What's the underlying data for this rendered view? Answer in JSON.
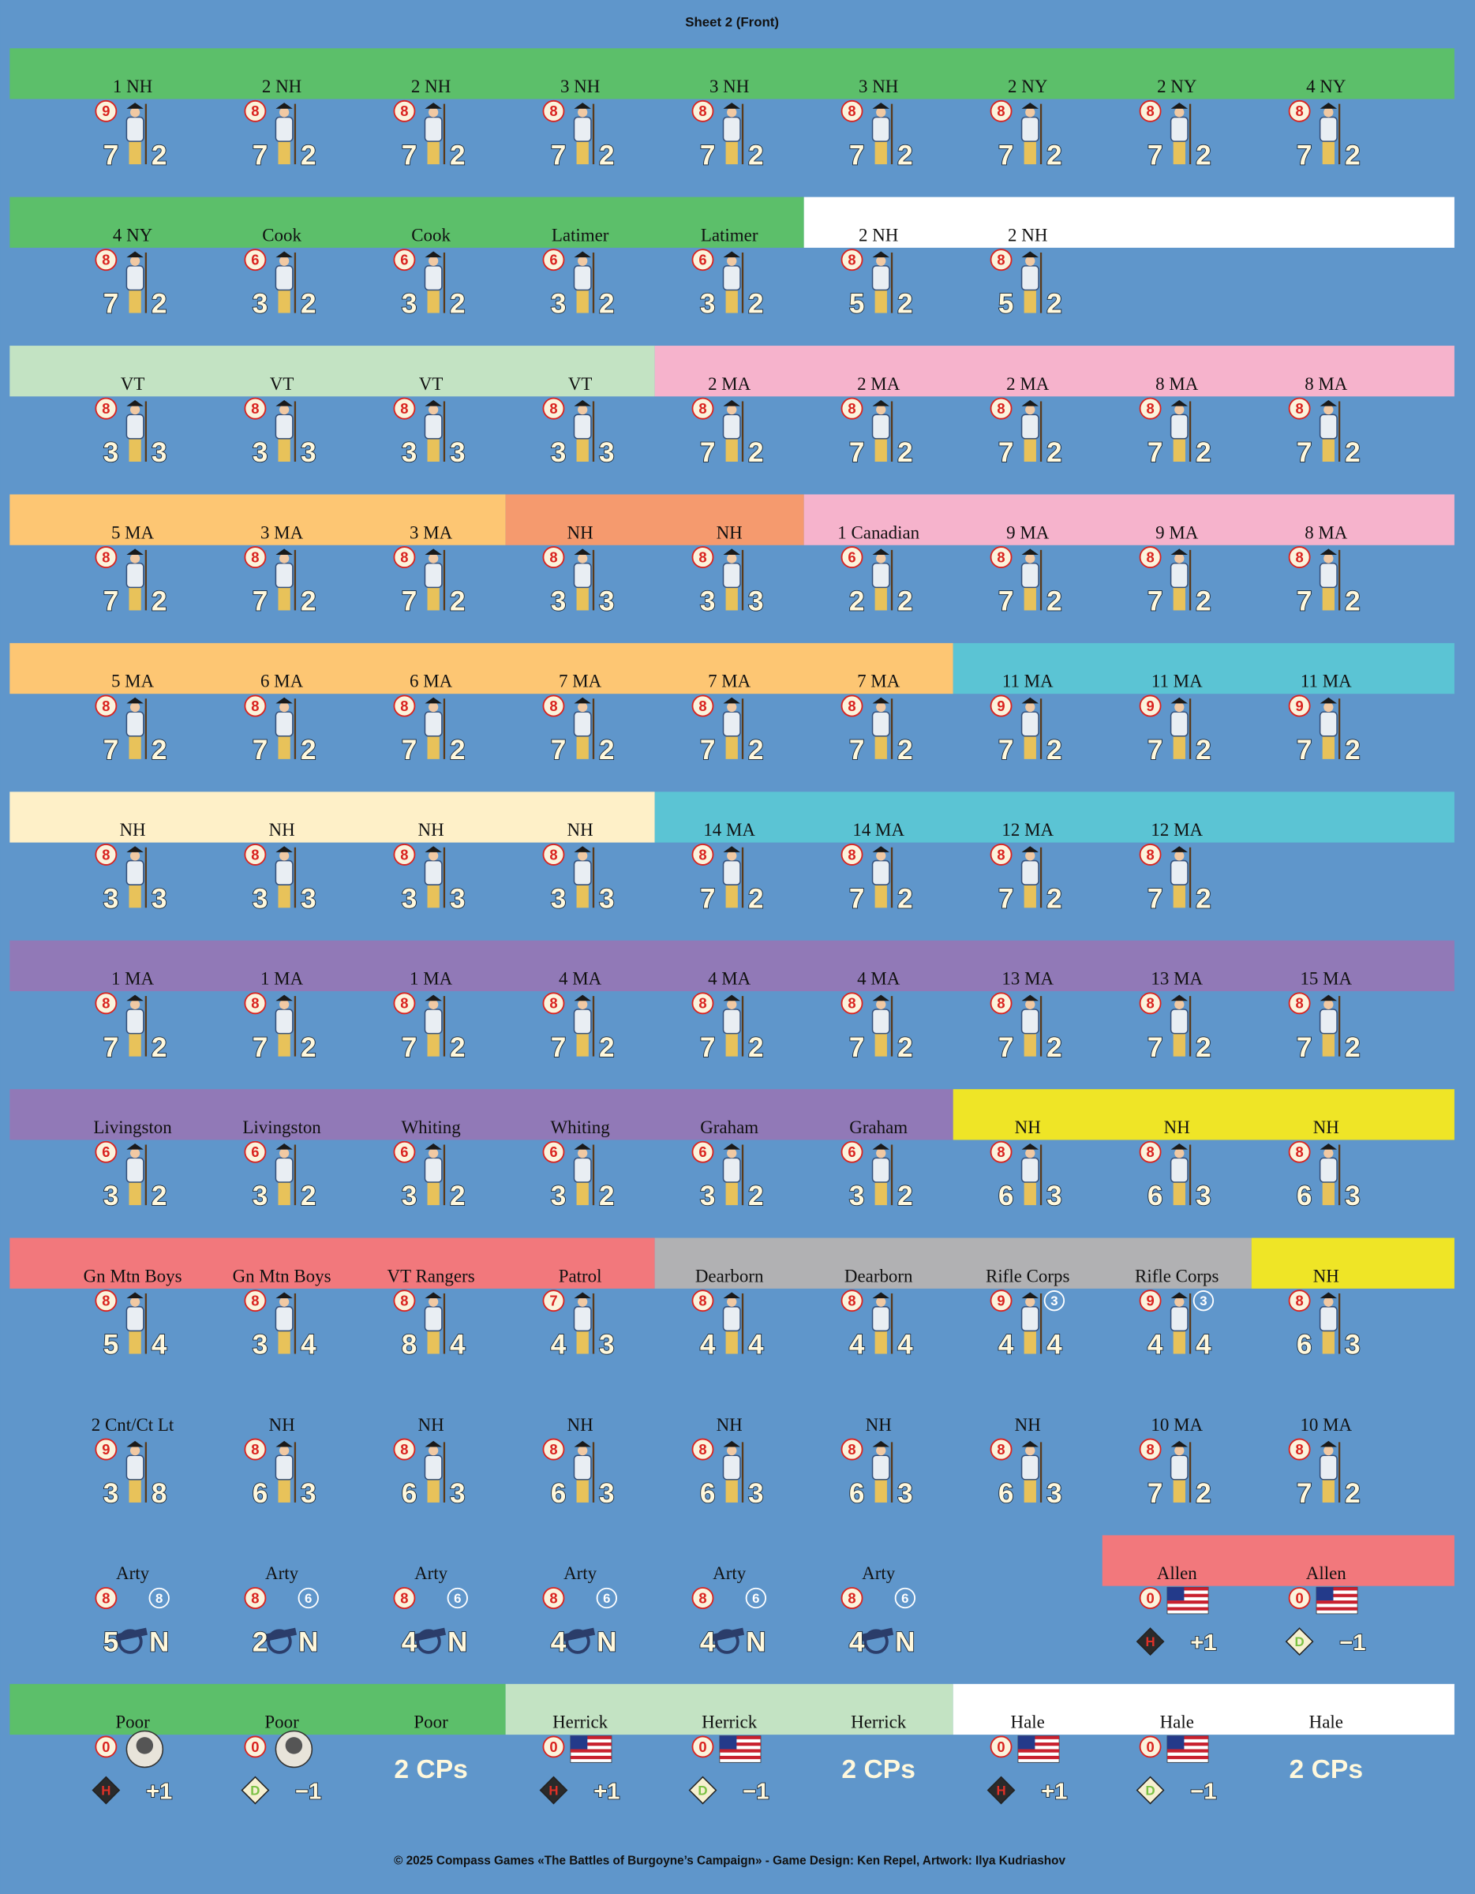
{
  "title": "Sheet 2 (Front)",
  "rows": [
    [
      {
        "label": "1 NH",
        "morale": 9,
        "stats": [
          7,
          2
        ]
      },
      {
        "label": "2 NH",
        "morale": 8,
        "stats": [
          7,
          2
        ]
      },
      {
        "label": "2 NH",
        "morale": 8,
        "stats": [
          7,
          2
        ]
      },
      {
        "label": "3 NH",
        "morale": 8,
        "stats": [
          7,
          2
        ]
      },
      {
        "label": "3 NH",
        "morale": 8,
        "stats": [
          7,
          2
        ]
      },
      {
        "label": "3 NH",
        "morale": 8,
        "stats": [
          7,
          2
        ]
      },
      {
        "label": "2 NY",
        "morale": 8,
        "stats": [
          7,
          2
        ]
      },
      {
        "label": "2 NY",
        "morale": 8,
        "stats": [
          7,
          2
        ]
      },
      {
        "label": "4 NY",
        "morale": 8,
        "stats": [
          7,
          2
        ]
      }
    ],
    [
      {
        "label": "4 NY",
        "morale": 8,
        "stats": [
          7,
          2
        ]
      },
      {
        "label": "Cook",
        "morale": 6,
        "stats": [
          3,
          2
        ]
      },
      {
        "label": "Cook",
        "morale": 6,
        "stats": [
          3,
          2
        ]
      },
      {
        "label": "Latimer",
        "morale": 6,
        "stats": [
          3,
          2
        ]
      },
      {
        "label": "Latimer",
        "morale": 6,
        "stats": [
          3,
          2
        ]
      },
      {
        "label": "2 NH",
        "morale": 8,
        "stats": [
          5,
          2
        ]
      },
      {
        "label": "2 NH",
        "morale": 8,
        "stats": [
          5,
          2
        ]
      }
    ],
    [
      {
        "label": "VT",
        "morale": 8,
        "stats": [
          3,
          3
        ]
      },
      {
        "label": "VT",
        "morale": 8,
        "stats": [
          3,
          3
        ]
      },
      {
        "label": "VT",
        "morale": 8,
        "stats": [
          3,
          3
        ]
      },
      {
        "label": "VT",
        "morale": 8,
        "stats": [
          3,
          3
        ]
      },
      {
        "label": "2 MA",
        "morale": 8,
        "stats": [
          7,
          2
        ]
      },
      {
        "label": "2 MA",
        "morale": 8,
        "stats": [
          7,
          2
        ]
      },
      {
        "label": "2 MA",
        "morale": 8,
        "stats": [
          7,
          2
        ]
      },
      {
        "label": "8 MA",
        "morale": 8,
        "stats": [
          7,
          2
        ]
      },
      {
        "label": "8 MA",
        "morale": 8,
        "stats": [
          7,
          2
        ]
      }
    ],
    [
      {
        "label": "5 MA",
        "morale": 8,
        "stats": [
          7,
          2
        ]
      },
      {
        "label": "3 MA",
        "morale": 8,
        "stats": [
          7,
          2
        ]
      },
      {
        "label": "3 MA",
        "morale": 8,
        "stats": [
          7,
          2
        ]
      },
      {
        "label": "NH",
        "morale": 8,
        "stats": [
          3,
          3
        ]
      },
      {
        "label": "NH",
        "morale": 8,
        "stats": [
          3,
          3
        ]
      },
      {
        "label": "1 Canadian",
        "morale": 6,
        "stats": [
          2,
          2
        ]
      },
      {
        "label": "9 MA",
        "morale": 8,
        "stats": [
          7,
          2
        ]
      },
      {
        "label": "9 MA",
        "morale": 8,
        "stats": [
          7,
          2
        ]
      },
      {
        "label": "8 MA",
        "morale": 8,
        "stats": [
          7,
          2
        ]
      }
    ],
    [
      {
        "label": "5 MA",
        "morale": 8,
        "stats": [
          7,
          2
        ]
      },
      {
        "label": "6 MA",
        "morale": 8,
        "stats": [
          7,
          2
        ]
      },
      {
        "label": "6 MA",
        "morale": 8,
        "stats": [
          7,
          2
        ]
      },
      {
        "label": "7 MA",
        "morale": 8,
        "stats": [
          7,
          2
        ]
      },
      {
        "label": "7 MA",
        "morale": 8,
        "stats": [
          7,
          2
        ]
      },
      {
        "label": "7 MA",
        "morale": 8,
        "stats": [
          7,
          2
        ]
      },
      {
        "label": "11 MA",
        "morale": 9,
        "stats": [
          7,
          2
        ]
      },
      {
        "label": "11 MA",
        "morale": 9,
        "stats": [
          7,
          2
        ]
      },
      {
        "label": "11 MA",
        "morale": 9,
        "stats": [
          7,
          2
        ]
      }
    ],
    [
      {
        "label": "NH",
        "morale": 8,
        "stats": [
          3,
          3
        ]
      },
      {
        "label": "NH",
        "morale": 8,
        "stats": [
          3,
          3
        ]
      },
      {
        "label": "NH",
        "morale": 8,
        "stats": [
          3,
          3
        ]
      },
      {
        "label": "NH",
        "morale": 8,
        "stats": [
          3,
          3
        ]
      },
      {
        "label": "14 MA",
        "morale": 8,
        "stats": [
          7,
          2
        ]
      },
      {
        "label": "14 MA",
        "morale": 8,
        "stats": [
          7,
          2
        ]
      },
      {
        "label": "12 MA",
        "morale": 8,
        "stats": [
          7,
          2
        ]
      },
      {
        "label": "12 MA",
        "morale": 8,
        "stats": [
          7,
          2
        ]
      }
    ],
    [
      {
        "label": "1 MA",
        "morale": 8,
        "stats": [
          7,
          2
        ]
      },
      {
        "label": "1 MA",
        "morale": 8,
        "stats": [
          7,
          2
        ]
      },
      {
        "label": "1 MA",
        "morale": 8,
        "stats": [
          7,
          2
        ]
      },
      {
        "label": "4 MA",
        "morale": 8,
        "stats": [
          7,
          2
        ]
      },
      {
        "label": "4 MA",
        "morale": 8,
        "stats": [
          7,
          2
        ]
      },
      {
        "label": "4 MA",
        "morale": 8,
        "stats": [
          7,
          2
        ]
      },
      {
        "label": "13 MA",
        "morale": 8,
        "stats": [
          7,
          2
        ]
      },
      {
        "label": "13 MA",
        "morale": 8,
        "stats": [
          7,
          2
        ]
      },
      {
        "label": "15 MA",
        "morale": 8,
        "stats": [
          7,
          2
        ]
      }
    ],
    [
      {
        "label": "Livingston",
        "morale": 6,
        "stats": [
          3,
          2
        ]
      },
      {
        "label": "Livingston",
        "morale": 6,
        "stats": [
          3,
          2
        ]
      },
      {
        "label": "Whiting",
        "morale": 6,
        "stats": [
          3,
          2
        ]
      },
      {
        "label": "Whiting",
        "morale": 6,
        "stats": [
          3,
          2
        ]
      },
      {
        "label": "Graham",
        "morale": 6,
        "stats": [
          3,
          2
        ]
      },
      {
        "label": "Graham",
        "morale": 6,
        "stats": [
          3,
          2
        ]
      },
      {
        "label": "NH",
        "morale": 8,
        "stats": [
          6,
          3
        ]
      },
      {
        "label": "NH",
        "morale": 8,
        "stats": [
          6,
          3
        ]
      },
      {
        "label": "NH",
        "morale": 8,
        "stats": [
          6,
          3
        ]
      }
    ],
    [
      {
        "label": "Gn Mtn Boys",
        "morale": 8,
        "stats": [
          5,
          4
        ]
      },
      {
        "label": "Gn Mtn Boys",
        "morale": 8,
        "stats": [
          3,
          4
        ]
      },
      {
        "label": "VT Rangers",
        "morale": 8,
        "stats": [
          8,
          4
        ]
      },
      {
        "label": "Patrol",
        "morale": 7,
        "stats": [
          4,
          3
        ]
      },
      {
        "label": "Dearborn",
        "morale": 8,
        "stats": [
          4,
          4
        ]
      },
      {
        "label": "Dearborn",
        "morale": 8,
        "stats": [
          4,
          4
        ]
      },
      {
        "label": "Rifle Corps",
        "morale": 9,
        "badge": 3,
        "stats": [
          4,
          4
        ]
      },
      {
        "label": "Rifle Corps",
        "morale": 9,
        "badge": 3,
        "stats": [
          4,
          4
        ]
      },
      {
        "label": "NH",
        "morale": 8,
        "stats": [
          6,
          3
        ]
      }
    ],
    [
      {
        "label": "2 Cnt/Ct Lt",
        "morale": 9,
        "stats": [
          3,
          8
        ]
      },
      {
        "label": "NH",
        "morale": 8,
        "stats": [
          6,
          3
        ]
      },
      {
        "label": "NH",
        "morale": 8,
        "stats": [
          6,
          3
        ]
      },
      {
        "label": "NH",
        "morale": 8,
        "stats": [
          6,
          3
        ]
      },
      {
        "label": "NH",
        "morale": 8,
        "stats": [
          6,
          3
        ]
      },
      {
        "label": "NH",
        "morale": 8,
        "stats": [
          6,
          3
        ]
      },
      {
        "label": "NH",
        "morale": 8,
        "stats": [
          6,
          3
        ]
      },
      {
        "label": "10 MA",
        "morale": 8,
        "stats": [
          7,
          2
        ]
      },
      {
        "label": "10 MA",
        "morale": 8,
        "stats": [
          7,
          2
        ]
      }
    ],
    [
      {
        "label": "Arty",
        "morale": 8,
        "badge": 8,
        "stats": [
          5,
          "N"
        ]
      },
      {
        "label": "Arty",
        "morale": 8,
        "badge": 6,
        "stats": [
          2,
          "N"
        ]
      },
      {
        "label": "Arty",
        "morale": 8,
        "badge": 6,
        "stats": [
          4,
          "N"
        ]
      },
      {
        "label": "Arty",
        "morale": 8,
        "badge": 6,
        "stats": [
          4,
          "N"
        ]
      },
      {
        "label": "Arty",
        "morale": 8,
        "badge": 6,
        "stats": [
          4,
          "N"
        ]
      },
      {
        "label": "Arty",
        "morale": 8,
        "badge": 6,
        "stats": [
          4,
          "N"
        ]
      },
      null,
      {
        "label": "Allen",
        "morale": 0,
        "ability": "H",
        "modifier": "+1"
      },
      {
        "label": "Allen",
        "morale": 0,
        "ability": "D",
        "modifier": "−1"
      }
    ],
    [
      {
        "label": "Poor",
        "morale": 0,
        "ability": "H",
        "modifier": "+1"
      },
      {
        "label": "Poor",
        "morale": 0,
        "ability": "D",
        "modifier": "−1"
      },
      {
        "label": "Poor",
        "text": "2 CPs"
      },
      {
        "label": "Herrick",
        "morale": 0,
        "ability": "H",
        "modifier": "+1"
      },
      {
        "label": "Herrick",
        "morale": 0,
        "ability": "D",
        "modifier": "−1"
      },
      {
        "label": "Herrick",
        "text": "2 CPs"
      },
      {
        "label": "Hale",
        "morale": 0,
        "ability": "H",
        "modifier": "+1"
      },
      {
        "label": "Hale",
        "morale": 0,
        "ability": "D",
        "modifier": "−1"
      },
      {
        "label": "Hale",
        "text": "2 CPs"
      }
    ]
  ],
  "footer": "© 2025  Compass  Games  «The Battles of Burgoyne’s Campaign» - Game Design: Ken Repel, Artwork: Ilya Kudriashov"
}
